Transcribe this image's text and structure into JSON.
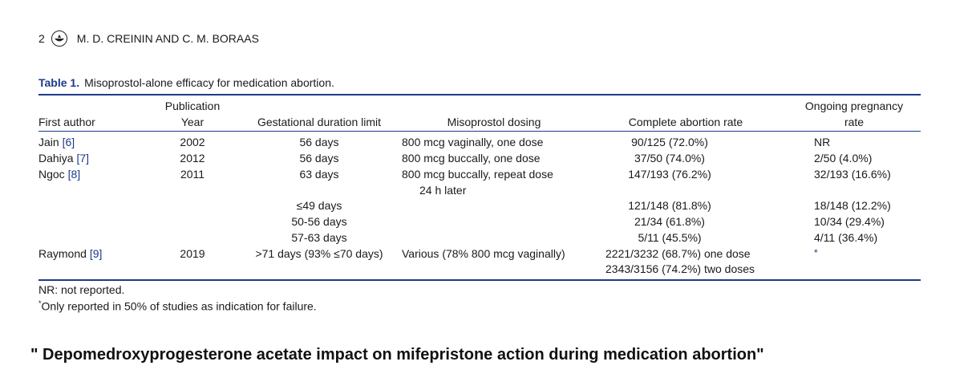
{
  "running_head": {
    "page_number": "2",
    "authors": "M. D. CREININ AND C. M. BORAAS"
  },
  "table": {
    "label": "Table 1.",
    "caption": "Misoprostol-alone efficacy for medication abortion.",
    "headers": {
      "first_author": "First author",
      "pub_year_line1": "Publication",
      "pub_year_line2": "Year",
      "gestational": "Gestational duration limit",
      "dosing": "Misoprostol dosing",
      "complete": "Complete abortion rate",
      "ongoing_line1": "Ongoing pregnancy",
      "ongoing_line2": "rate"
    },
    "rows": [
      {
        "author": "Jain",
        "ref": "[6]",
        "year": "2002",
        "gest": "56 days",
        "dosing": "800 mcg vaginally, one dose",
        "complete": "90/125 (72.0%)",
        "ongoing": "NR"
      },
      {
        "author": "Dahiya",
        "ref": "[7]",
        "year": "2012",
        "gest": "56 days",
        "dosing": "800 mcg buccally, one dose",
        "complete": "37/50 (74.0%)",
        "ongoing": "2/50 (4.0%)"
      },
      {
        "author": "Ngoc",
        "ref": "[8]",
        "year": "2011",
        "gest": "63 days",
        "dosing": "800 mcg buccally, repeat dose",
        "dosing2": "24 h later",
        "complete": "147/193 (76.2%)",
        "ongoing": "32/193 (16.6%)"
      },
      {
        "gest": "≤49 days",
        "complete": "121/148 (81.8%)",
        "ongoing": "18/148 (12.2%)"
      },
      {
        "gest": "50-56 days",
        "complete": "21/34 (61.8%)",
        "ongoing": "10/34 (29.4%)"
      },
      {
        "gest": "57-63 days",
        "complete": "5/11 (45.5%)",
        "ongoing": "4/11 (36.4%)"
      },
      {
        "author": "Raymond",
        "ref": "[9]",
        "year": "2019",
        "gest": ">71 days (93% ≤70 days)",
        "dosing": "Various (78% 800 mcg vaginally)",
        "complete": "2221/3232 (68.7%) one dose",
        "complete2": "2343/3156 (74.2%) two doses",
        "ongoing": "*"
      }
    ]
  },
  "footnotes": {
    "nr": "NR: not reported.",
    "star_mark": "*",
    "star_text": "Only reported in 50% of studies as indication for failure."
  },
  "banner": "\" Depomedroxyprogesterone acetate impact on mifepristone action during  medication abortion\"",
  "icons": {
    "logo": "publisher-logo-icon"
  },
  "colors": {
    "accent": "#1e3a8a"
  }
}
